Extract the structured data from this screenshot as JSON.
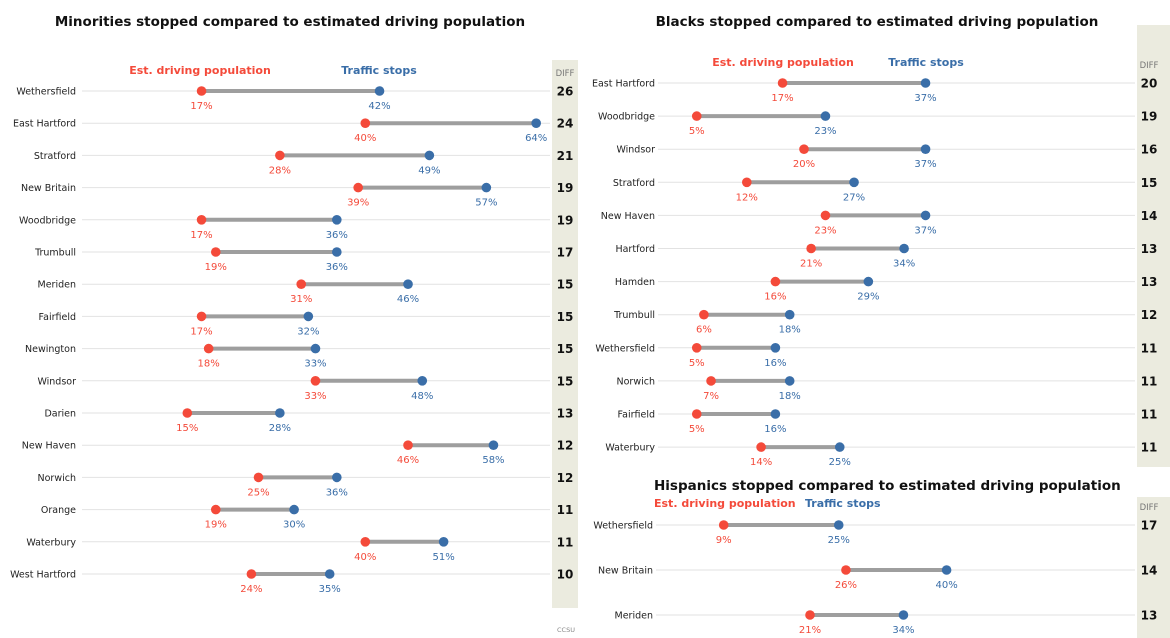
{
  "colors": {
    "est_population": "#f44a3a",
    "traffic_stops": "#3a6ea8",
    "connector": "#9e9e9e",
    "gridline": "#e2e2e2",
    "diff_column": "#ebebdf"
  },
  "credit": "CCSU",
  "chart_data": [
    {
      "id": "minorities",
      "type": "dumbbell",
      "title": "Minorities stopped compared to estimated driving population",
      "legend": {
        "est_population": "Est. driving population",
        "traffic_stops": "Traffic stops"
      },
      "diff_header": "DIFF",
      "value_unit": "%",
      "categories": [
        "Wethersfield",
        "East Hartford",
        "Stratford",
        "New Britain",
        "Woodbridge",
        "Trumbull",
        "Meriden",
        "Fairfield",
        "Newington",
        "Windsor",
        "Darien",
        "New Haven",
        "Norwich",
        "Orange",
        "Waterbury",
        "West Hartford"
      ],
      "series": [
        {
          "name": "Est. driving population",
          "values": [
            17,
            40,
            28,
            39,
            17,
            19,
            31,
            17,
            18,
            33,
            15,
            46,
            25,
            19,
            40,
            24
          ]
        },
        {
          "name": "Traffic stops",
          "values": [
            42,
            64,
            49,
            57,
            36,
            36,
            46,
            32,
            33,
            48,
            28,
            58,
            36,
            30,
            51,
            35
          ]
        }
      ],
      "diff": [
        26,
        24,
        21,
        19,
        19,
        17,
        15,
        15,
        15,
        15,
        13,
        12,
        12,
        11,
        11,
        10
      ]
    },
    {
      "id": "blacks",
      "type": "dumbbell",
      "title": "Blacks stopped compared to estimated driving population",
      "legend": {
        "est_population": "Est. driving population",
        "traffic_stops": "Traffic stops"
      },
      "diff_header": "DIFF",
      "value_unit": "%",
      "categories": [
        "East Hartford",
        "Woodbridge",
        "Windsor",
        "Stratford",
        "New Haven",
        "Hartford",
        "Hamden",
        "Trumbull",
        "Wethersfield",
        "Norwich",
        "Fairfield",
        "Waterbury"
      ],
      "series": [
        {
          "name": "Est. driving population",
          "values": [
            17,
            5,
            20,
            12,
            23,
            21,
            16,
            6,
            5,
            7,
            5,
            14
          ]
        },
        {
          "name": "Traffic stops",
          "values": [
            37,
            23,
            37,
            27,
            37,
            34,
            29,
            18,
            16,
            18,
            16,
            25
          ]
        }
      ],
      "diff": [
        20,
        19,
        16,
        15,
        14,
        13,
        13,
        12,
        11,
        11,
        11,
        11
      ]
    },
    {
      "id": "hispanics",
      "type": "dumbbell",
      "title": "Hispanics stopped compared to estimated driving population",
      "legend": {
        "est_population": "Est. driving population",
        "traffic_stops": "Traffic stops"
      },
      "diff_header": "DIFF",
      "value_unit": "%",
      "categories": [
        "Wethersfield",
        "New Britain",
        "Meriden"
      ],
      "series": [
        {
          "name": "Est. driving population",
          "values": [
            9,
            26,
            21
          ]
        },
        {
          "name": "Traffic stops",
          "values": [
            25,
            40,
            34
          ]
        }
      ],
      "diff": [
        17,
        14,
        13
      ]
    }
  ]
}
